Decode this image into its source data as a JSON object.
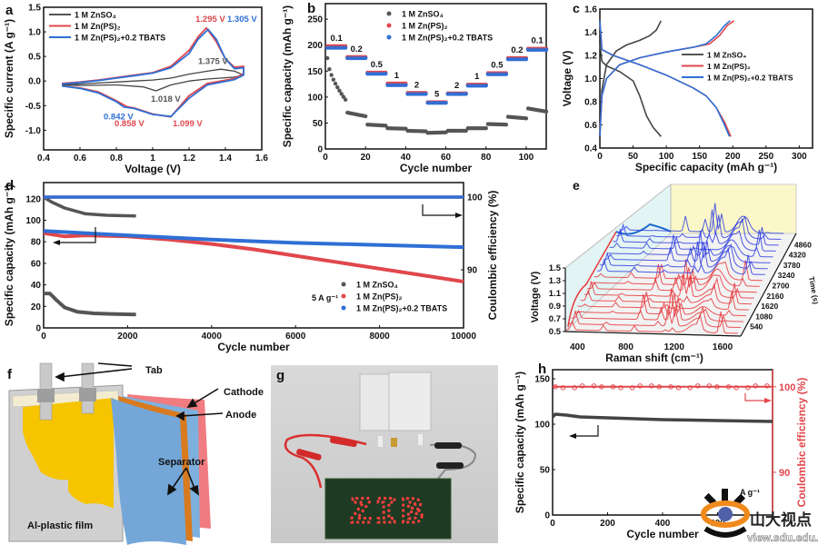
{
  "chart_data": [
    {
      "panel": "a",
      "type": "line",
      "xlabel": "Voltage (V)",
      "ylabel": "Specific current (A g⁻¹)",
      "xlim": [
        0.4,
        1.6
      ],
      "ylim": [
        -1.4,
        1.5
      ],
      "xticks": [
        0.4,
        0.6,
        0.8,
        1.0,
        1.2,
        1.4,
        1.6
      ],
      "yticks": [
        -1.0,
        -0.5,
        0.0,
        0.5,
        1.0,
        1.5
      ],
      "legend": [
        "1 M ZnSO₄",
        "1 M Zn(PS)₂",
        "1 M Zn(PS)₂+0.2 TBATS"
      ],
      "legend_position": "top-left",
      "series": [
        {
          "name": "1 M ZnSO4",
          "color": "#444444",
          "x": [
            0.5,
            0.6,
            0.7,
            0.8,
            0.9,
            1.0,
            1.1,
            1.2,
            1.3,
            1.375,
            1.45,
            1.5,
            1.45,
            1.3,
            1.2,
            1.1,
            1.018,
            0.95,
            0.8,
            0.6,
            0.5
          ],
          "y": [
            -0.08,
            -0.06,
            -0.04,
            -0.02,
            0.0,
            0.02,
            0.06,
            0.14,
            0.2,
            0.24,
            0.2,
            0.12,
            0.08,
            0.04,
            0.0,
            -0.08,
            -0.2,
            -0.12,
            -0.08,
            -0.09,
            -0.08
          ]
        },
        {
          "name": "1 M Zn(PS)2",
          "color": "#e0474c",
          "x": [
            0.5,
            0.6,
            0.7,
            0.8,
            0.9,
            1.0,
            1.1,
            1.2,
            1.25,
            1.295,
            1.35,
            1.4,
            1.45,
            1.5,
            1.5,
            1.45,
            1.3,
            1.2,
            1.099,
            1.0,
            0.9,
            0.858,
            0.8,
            0.7,
            0.6,
            0.5
          ],
          "y": [
            -0.05,
            -0.02,
            0.02,
            0.07,
            0.12,
            0.17,
            0.3,
            0.62,
            0.9,
            1.08,
            0.8,
            0.45,
            0.28,
            0.3,
            0.15,
            0.05,
            -0.05,
            -0.3,
            -0.73,
            -0.67,
            -0.55,
            -0.52,
            -0.4,
            -0.22,
            -0.14,
            -0.1
          ]
        },
        {
          "name": "1 M Zn(PS)2+0.2 TBATS",
          "color": "#2f6fd6",
          "x": [
            0.5,
            0.6,
            0.7,
            0.8,
            0.9,
            1.0,
            1.1,
            1.2,
            1.25,
            1.305,
            1.35,
            1.4,
            1.45,
            1.5,
            1.5,
            1.45,
            1.3,
            1.2,
            1.1,
            1.0,
            0.9,
            0.842,
            0.8,
            0.7,
            0.6,
            0.5
          ],
          "y": [
            -0.06,
            -0.03,
            0.01,
            0.06,
            0.11,
            0.16,
            0.27,
            0.56,
            0.85,
            1.05,
            0.85,
            0.45,
            0.25,
            0.27,
            0.12,
            0.03,
            -0.08,
            -0.35,
            -0.72,
            -0.68,
            -0.56,
            -0.53,
            -0.42,
            -0.24,
            -0.15,
            -0.1
          ]
        }
      ],
      "annotations": [
        {
          "text": "1.295 V",
          "color": "#e0474c"
        },
        {
          "text": "1.305 V",
          "color": "#2f6fd6"
        },
        {
          "text": "1.375 V",
          "color": "#555555"
        },
        {
          "text": "1.018 V",
          "color": "#555555"
        },
        {
          "text": "0.842 V",
          "color": "#2f6fd6"
        },
        {
          "text": "0.858 V",
          "color": "#e0474c"
        },
        {
          "text": "1.099 V",
          "color": "#e0474c"
        }
      ]
    },
    {
      "panel": "b",
      "type": "scatter",
      "xlabel": "Cycle number",
      "ylabel": "Specific capacity (mAh g⁻¹)",
      "xlim": [
        0,
        110
      ],
      "ylim": [
        0,
        280
      ],
      "xticks": [
        0,
        20,
        40,
        60,
        80,
        100
      ],
      "yticks": [
        0,
        50,
        100,
        150,
        200,
        250
      ],
      "legend": [
        "1 M ZnSO₄",
        "1 M Zn(PS)₂",
        "1 M Zn(PS)₂+0.2 TBATS"
      ],
      "legend_position": "top-center",
      "rate_labels": [
        "0.1",
        "0.2",
        "0.5",
        "1",
        "2",
        "5",
        "2",
        "1",
        "0.5",
        "0.2",
        "0.1"
      ],
      "segments": [
        {
          "rate": "0.1",
          "cycles": [
            1,
            10
          ],
          "ZnSO4": [
            175,
            95
          ],
          "ZnPS2": 198,
          "TBATS": 195
        },
        {
          "rate": "0.2",
          "cycles": [
            11,
            20
          ],
          "ZnSO4": [
            70,
            63
          ],
          "ZnPS2": 177,
          "TBATS": 175
        },
        {
          "rate": "0.5",
          "cycles": [
            21,
            30
          ],
          "ZnSO4": [
            47,
            45
          ],
          "ZnPS2": 147,
          "TBATS": 145
        },
        {
          "rate": "1",
          "cycles": [
            31,
            40
          ],
          "ZnSO4": [
            40,
            39
          ],
          "ZnPS2": 126,
          "TBATS": 123
        },
        {
          "rate": "2",
          "cycles": [
            41,
            50
          ],
          "ZnSO4": [
            35,
            34
          ],
          "ZnPS2": 108,
          "TBATS": 106
        },
        {
          "rate": "5",
          "cycles": [
            51,
            60
          ],
          "ZnSO4": [
            31,
            32
          ],
          "ZnPS2": 90,
          "TBATS": 89
        },
        {
          "rate": "2",
          "cycles": [
            61,
            70
          ],
          "ZnSO4": [
            35,
            35
          ],
          "ZnPS2": 107,
          "TBATS": 106
        },
        {
          "rate": "1",
          "cycles": [
            71,
            80
          ],
          "ZnSO4": [
            40,
            40
          ],
          "ZnPS2": 124,
          "TBATS": 122
        },
        {
          "rate": "0.5",
          "cycles": [
            81,
            90
          ],
          "ZnSO4": [
            48,
            47
          ],
          "ZnPS2": 146,
          "TBATS": 144
        },
        {
          "rate": "0.2",
          "cycles": [
            91,
            100
          ],
          "ZnSO4": [
            62,
            59
          ],
          "ZnPS2": 175,
          "TBATS": 173
        },
        {
          "rate": "0.1",
          "cycles": [
            101,
            110
          ],
          "ZnSO4": [
            78,
            72
          ],
          "ZnPS2": 193,
          "TBATS": 191
        }
      ],
      "series_colors": {
        "ZnSO4": "#555555",
        "ZnPS2": "#e0474c",
        "TBATS": "#2f6fd6"
      }
    },
    {
      "panel": "c",
      "type": "line",
      "xlabel": "Specific capacity (mAh g⁻¹)",
      "ylabel": "Voltage (V)",
      "xlim": [
        0,
        320
      ],
      "ylim": [
        0.4,
        1.6
      ],
      "xticks": [
        0,
        50,
        100,
        150,
        200,
        250,
        300
      ],
      "yticks": [
        0.4,
        0.6,
        0.8,
        1.0,
        1.2,
        1.4,
        1.6
      ],
      "legend": [
        "1 M ZnSO₄",
        "1 M Zn(PS)₂",
        "1 M Zn(PS)₂+0.2 TBATS"
      ],
      "legend_position": "center-right",
      "series": [
        {
          "name": "1 M ZnSO4 charge",
          "color": "#444444",
          "x": [
            0,
            3,
            10,
            25,
            40,
            60,
            75,
            85,
            92
          ],
          "y": [
            0.5,
            0.9,
            1.12,
            1.24,
            1.29,
            1.33,
            1.37,
            1.42,
            1.5
          ]
        },
        {
          "name": "1 M ZnSO4 discharge",
          "color": "#444444",
          "x": [
            0,
            3,
            10,
            30,
            50,
            60,
            70,
            80,
            92
          ],
          "y": [
            1.3,
            1.15,
            1.11,
            1.06,
            0.98,
            0.85,
            0.68,
            0.58,
            0.5
          ]
        },
        {
          "name": "1 M Zn(PS)2 charge",
          "color": "#e0474c",
          "x": [
            0,
            3,
            10,
            30,
            60,
            100,
            140,
            165,
            180,
            192,
            202
          ],
          "y": [
            0.5,
            0.85,
            1.0,
            1.12,
            1.18,
            1.23,
            1.27,
            1.3,
            1.37,
            1.46,
            1.5
          ]
        },
        {
          "name": "1 M Zn(PS)2 discharge",
          "color": "#e0474c",
          "x": [
            0,
            3,
            20,
            60,
            100,
            140,
            160,
            175,
            188,
            197
          ],
          "y": [
            1.5,
            1.25,
            1.2,
            1.12,
            1.03,
            0.92,
            0.85,
            0.75,
            0.62,
            0.5
          ]
        },
        {
          "name": "1 M Zn(PS)2+0.2 TBATS charge",
          "color": "#2f6fd6",
          "x": [
            0,
            3,
            10,
            30,
            60,
            100,
            140,
            160,
            175,
            188,
            196
          ],
          "y": [
            0.5,
            0.85,
            1.0,
            1.12,
            1.18,
            1.23,
            1.27,
            1.3,
            1.37,
            1.46,
            1.5
          ]
        },
        {
          "name": "1 M Zn(PS)2+0.2 TBATS discharge",
          "color": "#2f6fd6",
          "x": [
            0,
            3,
            20,
            60,
            100,
            140,
            160,
            175,
            186,
            195
          ],
          "y": [
            1.5,
            1.25,
            1.2,
            1.12,
            1.03,
            0.92,
            0.85,
            0.75,
            0.62,
            0.5
          ]
        }
      ]
    },
    {
      "panel": "d",
      "type": "scatter",
      "xlabel": "Cycle number",
      "ylabel": "Specific capacity (mAh g⁻¹)",
      "ylabel_right": "Coulombic efficiency (%)",
      "xlim": [
        0,
        10000
      ],
      "ylim": [
        0,
        135
      ],
      "ylim_right": [
        82,
        102
      ],
      "xticks": [
        0,
        2000,
        4000,
        6000,
        8000,
        10000
      ],
      "yticks": [
        0,
        20,
        40,
        60,
        80,
        100,
        120
      ],
      "yticks_right": [
        90,
        100
      ],
      "annotation": "5 A g⁻¹",
      "legend": [
        "1 M ZnSO₄",
        "1 M Zn(PS)₂",
        "1 M Zn(PS)₂+0.2 TBATS"
      ],
      "legend_position": "bottom-right",
      "series": [
        {
          "name": "1 M ZnSO4 capacity",
          "color": "#555555",
          "x": [
            0,
            150,
            300,
            500,
            800,
            1200,
            1600,
            2200
          ],
          "y": [
            32,
            32,
            26,
            19,
            15,
            13.5,
            13,
            12.5
          ]
        },
        {
          "name": "1 M ZnSO4 CE",
          "color": "#555555",
          "axis": "right",
          "x": [
            0,
            200,
            500,
            1000,
            1500,
            2200
          ],
          "y": [
            100,
            99.3,
            98.5,
            97.7,
            97.5,
            97.4
          ]
        },
        {
          "name": "1 M Zn(PS)2 capacity",
          "color": "#e0474c",
          "x": [
            0,
            500,
            1000,
            2000,
            3000,
            4000,
            5000,
            6000,
            7000,
            8000,
            9000,
            10000
          ],
          "y": [
            88,
            85,
            86,
            85,
            82,
            78,
            73,
            67,
            61,
            55,
            49,
            43
          ]
        },
        {
          "name": "1 M Zn(PS)2 CE",
          "color": "#e0474c",
          "axis": "right",
          "x": [
            0,
            10000
          ],
          "y": [
            100,
            100
          ]
        },
        {
          "name": "1 M Zn(PS)2+0.2 TBATS capacity",
          "color": "#2f6fd6",
          "x": [
            0,
            2000,
            4000,
            6000,
            8000,
            10000
          ],
          "y": [
            90,
            86,
            82,
            79,
            77,
            75
          ]
        },
        {
          "name": "1 M Zn(PS)2+0.2 TBATS CE",
          "color": "#2f6fd6",
          "axis": "right",
          "x": [
            0,
            10000
          ],
          "y": [
            100,
            100
          ]
        }
      ]
    },
    {
      "panel": "e",
      "type": "line",
      "subtype": "3d-waterfall",
      "xlabel": "Raman shift (cm⁻¹)",
      "ylabel": "Voltage (V)",
      "zlabel": "Time (s)",
      "xticks": [
        400,
        800,
        1200,
        1600
      ],
      "yticks": [
        0.5,
        0.7,
        0.9,
        1.1,
        1.3,
        1.5
      ],
      "zticks": [
        540,
        1080,
        1620,
        2160,
        2700,
        3240,
        3780,
        4320,
        4860
      ],
      "spectra_count": 18,
      "colors": {
        "charge": "#e8383d",
        "discharge": "#3040e0"
      }
    },
    {
      "panel": "h",
      "type": "scatter",
      "xlabel": "Cycle number",
      "ylabel": "Specific capacity (mAh g⁻¹)",
      "ylabel_right": "Coulombic efficiency (%)",
      "xlim": [
        0,
        800
      ],
      "ylim": [
        0,
        160
      ],
      "ylim_right": [
        85,
        102
      ],
      "xticks": [
        0,
        200,
        400,
        600
      ],
      "yticks": [
        0,
        50,
        100,
        150
      ],
      "yticks_right": [
        90,
        100
      ],
      "annotation": "A g⁻¹",
      "series": [
        {
          "name": "capacity",
          "color": "#444444",
          "x": [
            0,
            10,
            50,
            100,
            200,
            400,
            600,
            800
          ],
          "y": [
            108,
            111,
            110,
            108,
            107,
            105,
            104,
            103
          ]
        },
        {
          "name": "coulombic efficiency",
          "color": "#e0474c",
          "axis": "right",
          "x": [
            0,
            800
          ],
          "y": [
            100,
            100
          ]
        }
      ]
    }
  ],
  "panel_labels": {
    "a": "a",
    "b": "b",
    "c": "c",
    "d": "d",
    "e": "e",
    "f": "f",
    "g": "g",
    "h": "h"
  },
  "diagram_f": {
    "labels": {
      "tab": "Tab",
      "cathode": "Cathode",
      "anode": "Anode",
      "separator": "Separator",
      "film": "Al-plastic film"
    },
    "colors": {
      "cathode": "#f07b80",
      "anode": "#d87a1e",
      "separator": "#74a7d8",
      "electrode": "#f6c400",
      "film": "#cfcfcf"
    }
  },
  "photo_g": {
    "led_text": "ZIB"
  },
  "watermark": {
    "name": "山大视点",
    "url": "view.sdu.edu.cn"
  }
}
